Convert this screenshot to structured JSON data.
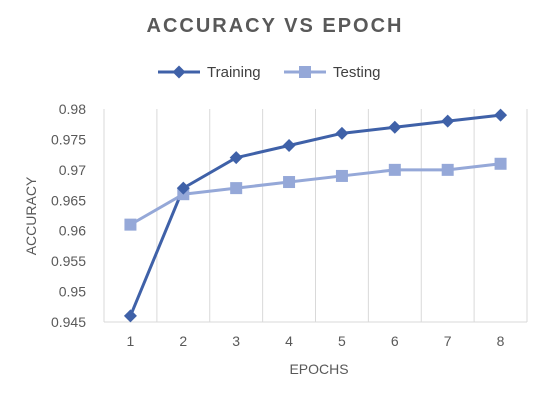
{
  "chart_data": {
    "type": "line",
    "title": "ACCURACY VS EPOCH",
    "xlabel": "EPOCHS",
    "ylabel": "ACCURACY",
    "categories": [
      "1",
      "2",
      "3",
      "4",
      "5",
      "6",
      "7",
      "8"
    ],
    "ylim": [
      0.945,
      0.98
    ],
    "yticks": [
      "0.945",
      "0.95",
      "0.955",
      "0.96",
      "0.965",
      "0.97",
      "0.975",
      "0.98"
    ],
    "grid": "vertical",
    "legend": "top",
    "series": [
      {
        "name": "Training",
        "marker": "diamond",
        "color": "#3F61A8",
        "values": [
          0.946,
          0.967,
          0.972,
          0.974,
          0.976,
          0.977,
          0.978,
          0.979
        ]
      },
      {
        "name": "Testing",
        "marker": "square",
        "color": "#95A8D8",
        "values": [
          0.961,
          0.966,
          0.967,
          0.968,
          0.969,
          0.97,
          0.97,
          0.971
        ]
      }
    ]
  }
}
